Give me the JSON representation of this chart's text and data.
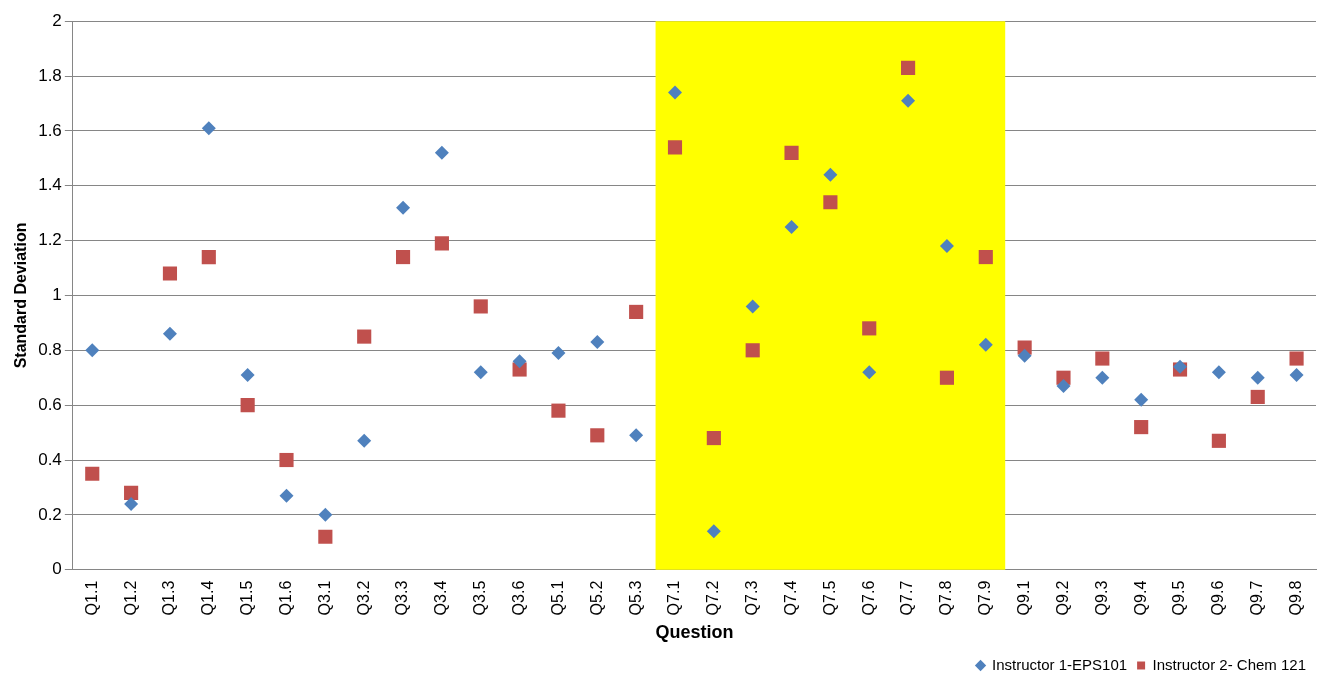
{
  "chart_data": {
    "type": "scatter",
    "xlabel": "Question",
    "ylabel": "Standard Deviation",
    "categories": [
      "Q1.1",
      "Q1.2",
      "Q1.3",
      "Q1.4",
      "Q1.5",
      "Q1.6",
      "Q3.1",
      "Q3.2",
      "Q3.3",
      "Q3.4",
      "Q3.5",
      "Q3.6",
      "Q5.1",
      "Q5.2",
      "Q5.3",
      "Q7.1",
      "Q7.2",
      "Q7.3",
      "Q7.4",
      "Q7.5",
      "Q7.6",
      "Q7.7",
      "Q7.8",
      "Q7.9",
      "Q9.1",
      "Q9.2",
      "Q9.3",
      "Q9.4",
      "Q9.5",
      "Q9.6",
      "Q9.7",
      "Q9.8"
    ],
    "series": [
      {
        "name": "Instructor 1-EPS101",
        "color": "#4f81bd",
        "marker": "diamond",
        "values": [
          0.8,
          0.24,
          0.86,
          1.61,
          0.71,
          0.27,
          0.2,
          0.47,
          1.32,
          1.52,
          0.72,
          0.76,
          0.79,
          0.83,
          0.49,
          1.74,
          0.14,
          0.96,
          1.25,
          1.44,
          0.72,
          1.71,
          1.18,
          0.82,
          0.78,
          0.67,
          0.7,
          0.62,
          0.74,
          0.72,
          0.7,
          0.71
        ]
      },
      {
        "name": "Instructor 2- Chem 121",
        "color": "#c0504d",
        "marker": "square",
        "values": [
          0.35,
          0.28,
          1.08,
          1.14,
          0.6,
          0.4,
          0.12,
          0.85,
          1.14,
          1.19,
          0.96,
          0.73,
          0.58,
          0.49,
          0.94,
          1.54,
          0.48,
          0.8,
          1.52,
          1.34,
          0.88,
          1.83,
          0.7,
          1.14,
          0.81,
          0.7,
          0.77,
          0.52,
          0.73,
          0.47,
          0.63,
          0.77
        ]
      }
    ],
    "ylim": [
      0,
      2
    ],
    "yticks": [
      0,
      0.2,
      0.4,
      0.6,
      0.8,
      1,
      1.2,
      1.4,
      1.6,
      1.8,
      2
    ],
    "grid": "y",
    "legend": "bottom right",
    "bands": [
      {
        "axis": "x",
        "from": "Q7.1",
        "to": "Q7.9",
        "color": "#ffff00"
      }
    ]
  }
}
